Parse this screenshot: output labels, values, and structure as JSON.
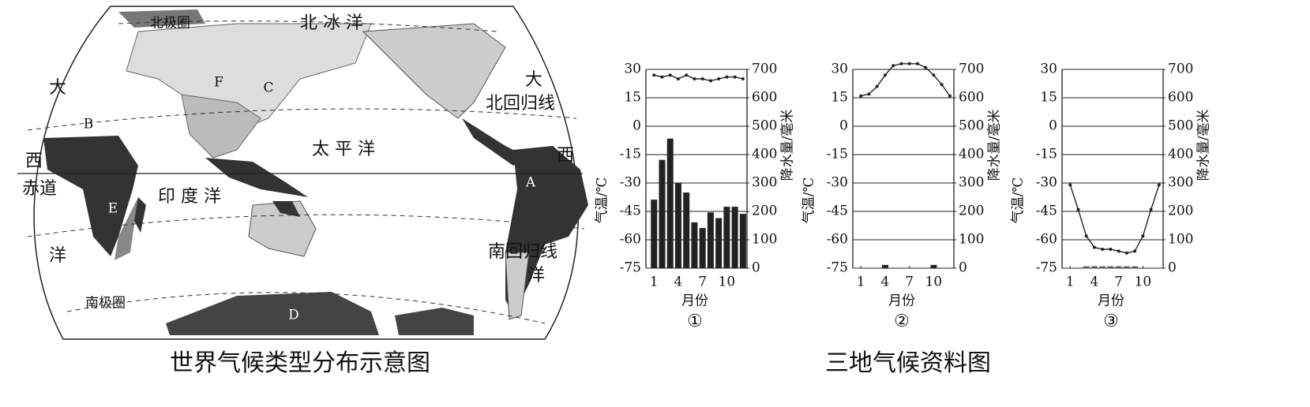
{
  "map": {
    "title": "世界气候类型分布示意图",
    "labels": [
      "北极圈",
      "北 冰 洋",
      "大",
      "西",
      "洋",
      "赤道",
      "太 平 洋",
      "印 度 洋",
      "北回归线",
      "南回归线",
      "南极圈",
      "大",
      "西",
      "洋",
      "A",
      "B",
      "C",
      "D",
      "E",
      "F"
    ]
  },
  "caption": "三地气候资料图",
  "chart_data": [
    {
      "type": "combo",
      "label": "①",
      "xlabel": "月份",
      "ylabel": "气温/℃",
      "y2label": "降水量/毫米",
      "x": [
        1,
        2,
        3,
        4,
        5,
        6,
        7,
        8,
        9,
        10,
        11,
        12
      ],
      "xlim": [
        0,
        12.5
      ],
      "xticks": [
        1,
        4,
        7,
        10
      ],
      "ylim": [
        -75,
        30
      ],
      "yticks": [
        30,
        15,
        0,
        -15,
        -30,
        -45,
        -60,
        -75
      ],
      "y2lim": [
        0,
        700
      ],
      "y2ticks": [
        700,
        600,
        500,
        400,
        300,
        200,
        100,
        0
      ],
      "grid": true,
      "series": [
        {
          "type": "bar",
          "axis": "y2",
          "color": "#222222",
          "values": [
            240,
            380,
            455,
            300,
            265,
            160,
            140,
            195,
            175,
            215,
            215,
            190
          ]
        },
        {
          "type": "line",
          "color": "#222222",
          "values": [
            27,
            26,
            27,
            25,
            27,
            25,
            25,
            24,
            25,
            26,
            26,
            25
          ]
        }
      ]
    },
    {
      "type": "combo",
      "label": "②",
      "xlabel": "月份",
      "ylabel": "气温/℃",
      "y2label": "降水量/毫米",
      "x": [
        1,
        2,
        3,
        4,
        5,
        6,
        7,
        8,
        9,
        10,
        11,
        12
      ],
      "xlim": [
        0,
        12.5
      ],
      "xticks": [
        1,
        4,
        7,
        10
      ],
      "ylim": [
        -75,
        30
      ],
      "yticks": [
        30,
        15,
        0,
        -15,
        -30,
        -45,
        -60,
        -75
      ],
      "y2lim": [
        0,
        700
      ],
      "y2ticks": [
        700,
        600,
        500,
        400,
        300,
        200,
        100,
        0
      ],
      "grid": true,
      "series": [
        {
          "type": "bar",
          "axis": "y2",
          "color": "#222222",
          "values": [
            0,
            0,
            0,
            10,
            0,
            0,
            0,
            0,
            0,
            10,
            0,
            0
          ]
        },
        {
          "type": "line",
          "color": "#222222",
          "values": [
            16,
            17,
            21,
            27,
            32,
            33,
            33,
            33,
            31,
            27,
            22,
            16
          ]
        }
      ]
    },
    {
      "type": "combo",
      "label": "③",
      "xlabel": "月份",
      "ylabel": "气温/℃",
      "y2label": "降水量/毫米",
      "x": [
        1,
        2,
        3,
        4,
        5,
        6,
        7,
        8,
        9,
        10,
        11,
        12
      ],
      "xlim": [
        0,
        12.5
      ],
      "xticks": [
        1,
        4,
        7,
        10
      ],
      "ylim": [
        -75,
        30
      ],
      "yticks": [
        30,
        15,
        0,
        -15,
        -30,
        -45,
        -60,
        -75
      ],
      "y2lim": [
        0,
        700
      ],
      "y2ticks": [
        700,
        600,
        500,
        400,
        300,
        200,
        100,
        0
      ],
      "grid": true,
      "series": [
        {
          "type": "bar",
          "axis": "y2",
          "color": "#555555",
          "values": [
            0,
            0,
            5,
            5,
            5,
            5,
            5,
            5,
            5,
            0,
            0,
            0
          ]
        },
        {
          "type": "line",
          "color": "#222222",
          "values": [
            -31,
            -44,
            -58,
            -64,
            -65,
            -65,
            -66,
            -67,
            -66,
            -58,
            -44,
            -31
          ]
        }
      ]
    }
  ]
}
